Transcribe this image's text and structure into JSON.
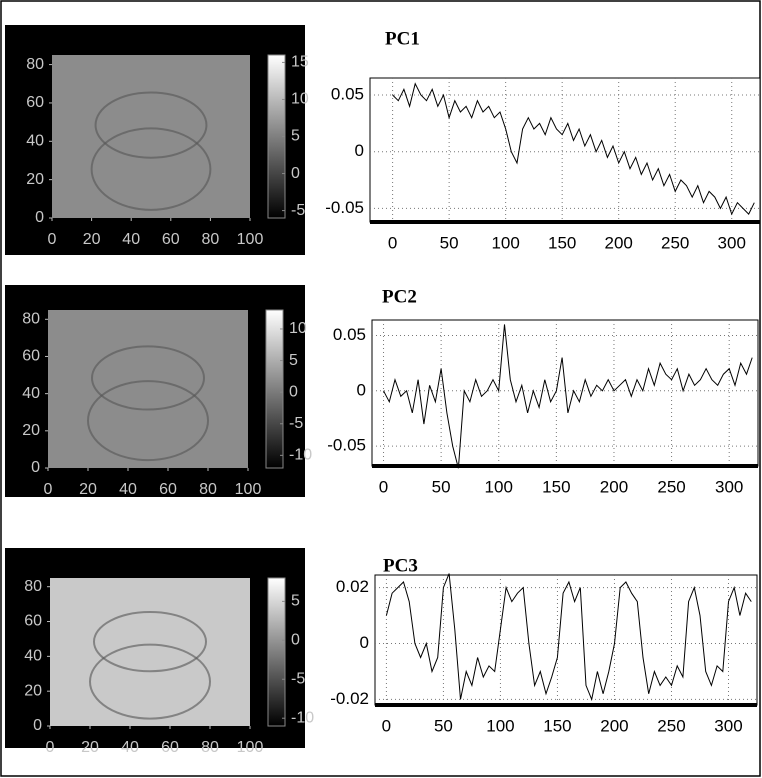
{
  "chart_data": [
    {
      "type": "image",
      "xlim": [
        0,
        100
      ],
      "ylim": [
        0,
        85
      ],
      "xticks": [
        0,
        20,
        40,
        60,
        80,
        100
      ],
      "yticks": [
        0,
        20,
        40,
        60,
        80
      ],
      "clim": [
        -6,
        16
      ],
      "cticks": [
        -5,
        0,
        5,
        10,
        15
      ],
      "background": "#8c8c8c"
    },
    {
      "type": "line",
      "title": "PC1",
      "grid": true,
      "color": "#000000",
      "x": [
        0,
        5,
        10,
        15,
        20,
        25,
        30,
        35,
        40,
        45,
        50,
        55,
        60,
        65,
        70,
        75,
        80,
        85,
        90,
        95,
        100,
        105,
        110,
        115,
        120,
        125,
        130,
        135,
        140,
        145,
        150,
        155,
        160,
        165,
        170,
        175,
        180,
        185,
        190,
        195,
        200,
        205,
        210,
        215,
        220,
        225,
        230,
        235,
        240,
        245,
        250,
        255,
        260,
        265,
        270,
        275,
        280,
        285,
        290,
        295,
        300,
        305,
        310,
        315,
        320
      ],
      "values": [
        0.05,
        0.045,
        0.055,
        0.04,
        0.06,
        0.05,
        0.045,
        0.055,
        0.04,
        0.05,
        0.03,
        0.045,
        0.035,
        0.04,
        0.03,
        0.045,
        0.035,
        0.04,
        0.03,
        0.035,
        0.02,
        0.0,
        -0.01,
        0.02,
        0.03,
        0.02,
        0.025,
        0.015,
        0.03,
        0.02,
        0.015,
        0.025,
        0.01,
        0.02,
        0.005,
        0.015,
        0.0,
        0.01,
        -0.005,
        0.005,
        -0.01,
        0.0,
        -0.015,
        -0.005,
        -0.02,
        -0.01,
        -0.025,
        -0.015,
        -0.03,
        -0.02,
        -0.035,
        -0.025,
        -0.03,
        -0.04,
        -0.03,
        -0.045,
        -0.035,
        -0.04,
        -0.05,
        -0.04,
        -0.055,
        -0.045,
        -0.05,
        -0.055,
        -0.045
      ],
      "xlim": [
        -20,
        325
      ],
      "ylim": [
        -0.062,
        0.065
      ],
      "xticks": [
        0,
        50,
        100,
        150,
        200,
        250,
        300
      ],
      "yticks": [
        -0.05,
        0,
        0.05
      ]
    },
    {
      "type": "image",
      "xlim": [
        0,
        100
      ],
      "ylim": [
        0,
        85
      ],
      "xticks": [
        0,
        20,
        40,
        60,
        80,
        100
      ],
      "yticks": [
        0,
        20,
        40,
        60,
        80
      ],
      "clim": [
        -12,
        13
      ],
      "cticks": [
        -10,
        -5,
        0,
        5,
        10
      ],
      "background": "#8c8c8c"
    },
    {
      "type": "line",
      "title": "PC2",
      "grid": true,
      "color": "#000000",
      "x": [
        0,
        5,
        10,
        15,
        20,
        25,
        30,
        35,
        40,
        45,
        50,
        55,
        60,
        65,
        70,
        75,
        80,
        85,
        90,
        95,
        100,
        105,
        110,
        115,
        120,
        125,
        130,
        135,
        140,
        145,
        150,
        155,
        160,
        165,
        170,
        175,
        180,
        185,
        190,
        195,
        200,
        205,
        210,
        215,
        220,
        225,
        230,
        235,
        240,
        245,
        250,
        255,
        260,
        265,
        270,
        275,
        280,
        285,
        290,
        295,
        300,
        305,
        310,
        315,
        320
      ],
      "values": [
        0.0,
        -0.01,
        0.01,
        -0.005,
        0.0,
        -0.02,
        0.01,
        -0.03,
        0.005,
        -0.01,
        0.02,
        -0.02,
        -0.05,
        -0.07,
        0.0,
        -0.01,
        0.01,
        -0.005,
        0.0,
        0.01,
        0.0,
        0.06,
        0.01,
        -0.01,
        0.005,
        -0.02,
        0.0,
        -0.015,
        0.01,
        -0.01,
        0.0,
        0.03,
        -0.02,
        0.0,
        -0.01,
        0.01,
        -0.005,
        0.005,
        0.0,
        0.01,
        0.0,
        0.005,
        0.01,
        -0.005,
        0.01,
        0.0,
        0.02,
        0.005,
        0.025,
        0.015,
        0.01,
        0.02,
        0.0,
        0.015,
        0.005,
        0.01,
        0.02,
        0.01,
        0.005,
        0.015,
        0.02,
        0.005,
        0.025,
        0.015,
        0.03
      ],
      "xlim": [
        -10,
        325
      ],
      "ylim": [
        -0.068,
        0.064
      ],
      "xticks": [
        0,
        50,
        100,
        150,
        200,
        250,
        300
      ],
      "yticks": [
        -0.05,
        0,
        0.05
      ]
    },
    {
      "type": "image",
      "xlim": [
        0,
        100
      ],
      "ylim": [
        0,
        85
      ],
      "xticks": [
        0,
        20,
        40,
        60,
        80,
        100
      ],
      "yticks": [
        0,
        20,
        40,
        60,
        80
      ],
      "clim": [
        -11,
        8
      ],
      "cticks": [
        -10,
        -5,
        0,
        5
      ],
      "background": "#c9c9c9"
    },
    {
      "type": "line",
      "title": "PC3",
      "grid": true,
      "color": "#000000",
      "x": [
        0,
        5,
        10,
        15,
        20,
        25,
        30,
        35,
        40,
        45,
        50,
        55,
        60,
        65,
        70,
        75,
        80,
        85,
        90,
        95,
        100,
        105,
        110,
        115,
        120,
        125,
        130,
        135,
        140,
        145,
        150,
        155,
        160,
        165,
        170,
        175,
        180,
        185,
        190,
        195,
        200,
        205,
        210,
        215,
        220,
        225,
        230,
        235,
        240,
        245,
        250,
        255,
        260,
        265,
        270,
        275,
        280,
        285,
        290,
        295,
        300,
        305,
        310,
        315,
        320
      ],
      "values": [
        0.01,
        0.018,
        0.02,
        0.022,
        0.015,
        0.0,
        -0.005,
        0.0,
        -0.01,
        -0.005,
        0.02,
        0.025,
        0.005,
        -0.02,
        -0.01,
        -0.015,
        -0.005,
        -0.012,
        -0.008,
        -0.01,
        0.005,
        0.02,
        0.015,
        0.018,
        0.02,
        0.0,
        -0.015,
        -0.01,
        -0.018,
        -0.012,
        -0.005,
        0.018,
        0.022,
        0.015,
        0.02,
        -0.015,
        -0.02,
        -0.01,
        -0.018,
        -0.01,
        0.0,
        0.02,
        0.022,
        0.018,
        0.015,
        -0.005,
        -0.018,
        -0.01,
        -0.015,
        -0.012,
        -0.015,
        -0.008,
        -0.012,
        0.015,
        0.02,
        0.01,
        -0.01,
        -0.015,
        -0.008,
        -0.01,
        0.015,
        0.02,
        0.01,
        0.018,
        0.015
      ],
      "xlim": [
        -10,
        325
      ],
      "ylim": [
        -0.022,
        0.0245
      ],
      "xticks": [
        0,
        50,
        100,
        150,
        200,
        250,
        300
      ],
      "yticks": [
        -0.02,
        0,
        0.02
      ]
    }
  ]
}
